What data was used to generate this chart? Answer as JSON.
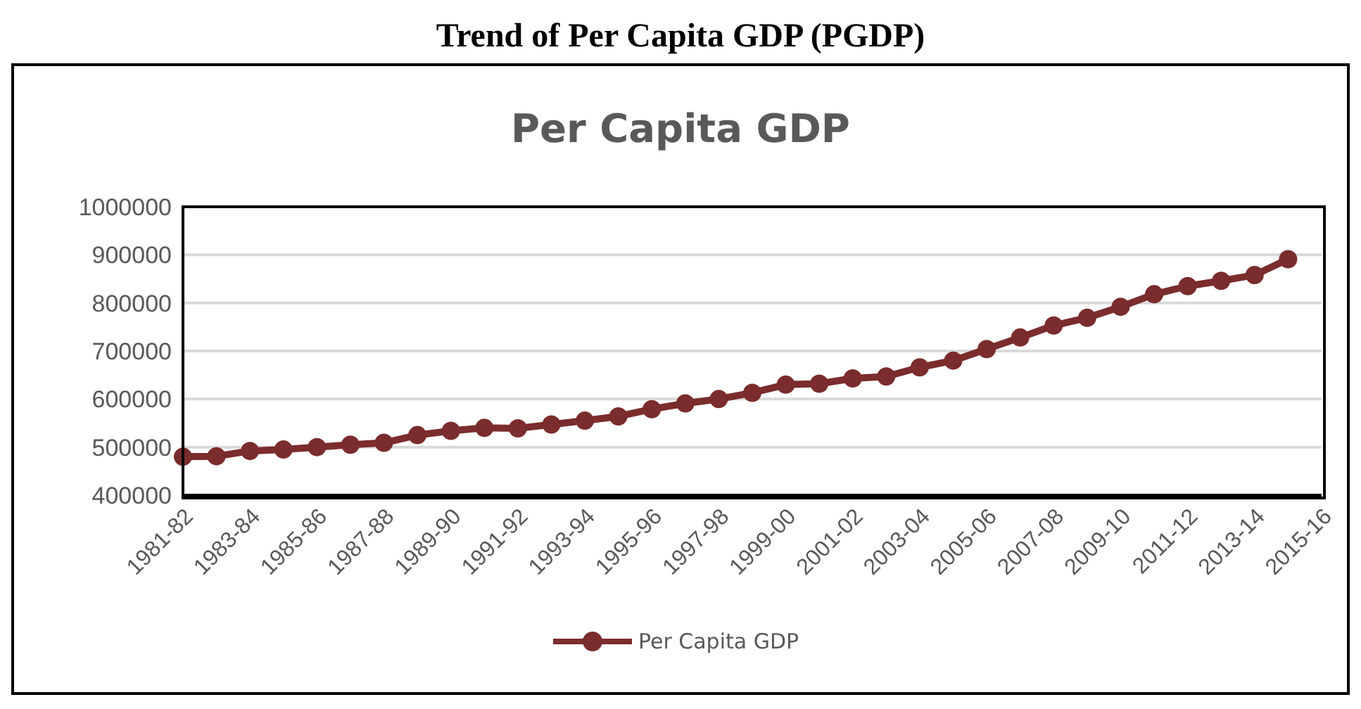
{
  "chart_data": {
    "type": "line",
    "title": "Trend of Per Capita GDP (PGDP)",
    "subtitle": "Per Capita GDP",
    "categories": [
      "1981-82",
      null,
      "1983-84",
      null,
      "1985-86",
      null,
      "1987-88",
      null,
      "1989-90",
      null,
      "1991-92",
      null,
      "1993-94",
      null,
      "1995-96",
      null,
      "1997-98",
      null,
      "1999-00",
      null,
      "2001-02",
      null,
      "2003-04",
      null,
      "2005-06",
      null,
      "2007-08",
      null,
      "2009-10",
      null,
      "2011-12",
      null,
      "2013-14",
      null,
      "2015-16"
    ],
    "series": [
      {
        "name": "Per Capita GDP",
        "color": "#7b2c2c",
        "values": [
          480000,
          481000,
          492000,
          495000,
          500000,
          505000,
          509000,
          525000,
          534000,
          540000,
          539000,
          547000,
          555000,
          564000,
          579000,
          591000,
          600000,
          613000,
          630000,
          632000,
          643000,
          647000,
          666000,
          680000,
          704000,
          728000,
          753000,
          769000,
          792000,
          818000,
          835000,
          846000,
          858000,
          891000,
          null
        ]
      }
    ],
    "ylim": [
      400000,
      1000000
    ],
    "yticks": [
      400000,
      500000,
      600000,
      700000,
      800000,
      900000,
      1000000
    ],
    "grid": "y",
    "legend": "bottom",
    "marker": "circle",
    "line_style": "solid"
  }
}
